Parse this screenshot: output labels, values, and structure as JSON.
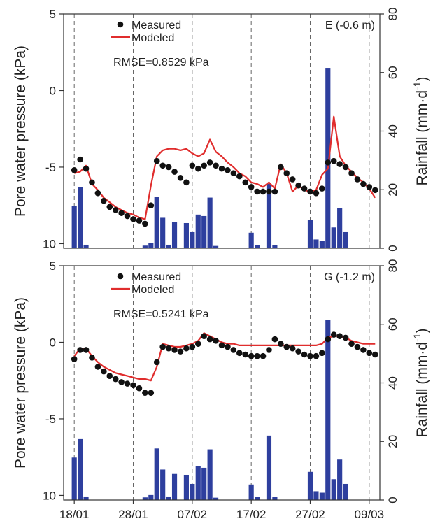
{
  "chart_data": [
    {
      "type": "bar+scatter+line",
      "panel_label": "E (-0.6 m)",
      "annotation": "RMSE=0.8529 kPa",
      "ylabel": "Pore water pressure (kPa)",
      "y2label": "Rainfall (mm·d",
      "y2label_sup": "-1",
      "y2label_end": ")",
      "ylim": [
        -10.3,
        5
      ],
      "y2lim": [
        0,
        80
      ],
      "yticks": [
        5,
        0,
        -5,
        10
      ],
      "ytick_labels": [
        "5",
        "0",
        "-5",
        "10"
      ],
      "y2ticks": [
        0,
        20,
        40,
        60,
        80
      ],
      "y2tick_labels": [
        "0",
        "20",
        "40",
        "60",
        "80"
      ],
      "x_start": "18/01",
      "xlim_days": [
        -1.8,
        51.8
      ],
      "vlines_days": [
        0,
        10,
        20,
        30,
        40,
        50
      ],
      "legend": {
        "measured": "Measured",
        "modeled": "Modeled"
      },
      "measured": [
        [
          0,
          -5.2
        ],
        [
          1,
          -4.5
        ],
        [
          2,
          -5.1
        ],
        [
          3,
          -6.0
        ],
        [
          4,
          -6.7
        ],
        [
          5,
          -7.2
        ],
        [
          6,
          -7.6
        ],
        [
          7,
          -7.8
        ],
        [
          8,
          -8.0
        ],
        [
          9,
          -8.2
        ],
        [
          10,
          -8.4
        ],
        [
          11,
          -8.5
        ],
        [
          12,
          -8.7
        ],
        [
          13,
          -7.5
        ],
        [
          14,
          -4.6
        ],
        [
          15,
          -4.9
        ],
        [
          16,
          -5.0
        ],
        [
          17,
          -5.3
        ],
        [
          18,
          -5.7
        ],
        [
          19,
          -6.0
        ],
        [
          20,
          -4.9
        ],
        [
          21,
          -5.1
        ],
        [
          22,
          -4.9
        ],
        [
          23,
          -4.7
        ],
        [
          24,
          -4.9
        ],
        [
          25,
          -5.1
        ],
        [
          26,
          -5.2
        ],
        [
          27,
          -5.4
        ],
        [
          28,
          -5.6
        ],
        [
          29,
          -6.0
        ],
        [
          30,
          -6.3
        ],
        [
          31,
          -6.6
        ],
        [
          32,
          -6.6
        ],
        [
          33,
          -6.6
        ],
        [
          34,
          -6.6
        ],
        [
          35,
          -5.0
        ],
        [
          36,
          -5.4
        ],
        [
          37,
          -5.8
        ],
        [
          38,
          -6.2
        ],
        [
          39,
          -6.4
        ],
        [
          40,
          -6.6
        ],
        [
          41,
          -6.7
        ],
        [
          42,
          -6.4
        ],
        [
          43,
          -4.7
        ],
        [
          44,
          -4.6
        ],
        [
          45,
          -4.8
        ],
        [
          46,
          -5.0
        ],
        [
          47,
          -5.4
        ],
        [
          48,
          -5.8
        ],
        [
          49,
          -6.1
        ],
        [
          50,
          -6.3
        ],
        [
          51,
          -6.5
        ]
      ],
      "modeled": [
        [
          0,
          -5.4
        ],
        [
          1,
          -5.3
        ],
        [
          2,
          -4.9
        ],
        [
          3,
          -6.1
        ],
        [
          4,
          -6.5
        ],
        [
          5,
          -7.0
        ],
        [
          6,
          -7.3
        ],
        [
          7,
          -7.6
        ],
        [
          8,
          -7.8
        ],
        [
          9,
          -8.0
        ],
        [
          10,
          -8.1
        ],
        [
          11,
          -8.3
        ],
        [
          12,
          -8.4
        ],
        [
          13,
          -6.2
        ],
        [
          14,
          -4.3
        ],
        [
          15,
          -3.9
        ],
        [
          16,
          -3.8
        ],
        [
          17,
          -3.8
        ],
        [
          18,
          -3.9
        ],
        [
          19,
          -3.8
        ],
        [
          20,
          -4.1
        ],
        [
          21,
          -4.3
        ],
        [
          22,
          -4.1
        ],
        [
          23,
          -3.2
        ],
        [
          24,
          -4.0
        ],
        [
          25,
          -4.3
        ],
        [
          26,
          -4.7
        ],
        [
          27,
          -5.0
        ],
        [
          28,
          -5.4
        ],
        [
          29,
          -5.6
        ],
        [
          30,
          -6.0
        ],
        [
          31,
          -6.1
        ],
        [
          32,
          -6.3
        ],
        [
          33,
          -6.0
        ],
        [
          34,
          -6.4
        ],
        [
          35,
          -4.8
        ],
        [
          36,
          -5.4
        ],
        [
          37,
          -6.6
        ],
        [
          38,
          -6.2
        ],
        [
          39,
          -6.5
        ],
        [
          40,
          -6.6
        ],
        [
          41,
          -6.5
        ],
        [
          42,
          -5.5
        ],
        [
          43,
          -5.1
        ],
        [
          44,
          -1.7
        ],
        [
          45,
          -4.3
        ],
        [
          46,
          -4.9
        ],
        [
          47,
          -5.3
        ],
        [
          48,
          -5.7
        ],
        [
          49,
          -6.0
        ],
        [
          50,
          -6.4
        ],
        [
          51,
          -7.0
        ]
      ],
      "rainfall": [
        [
          0,
          14.5
        ],
        [
          1,
          20.8
        ],
        [
          2,
          1.2
        ],
        [
          12,
          0.9
        ],
        [
          13,
          1.7
        ],
        [
          14,
          17.6
        ],
        [
          15,
          10.4
        ],
        [
          16,
          1.2
        ],
        [
          17,
          8.9
        ],
        [
          19,
          8.6
        ],
        [
          20,
          5.5
        ],
        [
          21,
          11.5
        ],
        [
          22,
          11.0
        ],
        [
          23,
          17.3
        ],
        [
          24,
          0.8
        ],
        [
          30,
          5.3
        ],
        [
          31,
          1.0
        ],
        [
          33,
          22.0
        ],
        [
          34,
          1.0
        ],
        [
          40,
          9.6
        ],
        [
          41,
          3.0
        ],
        [
          42,
          2.5
        ],
        [
          43,
          61.6
        ],
        [
          44,
          7.1
        ],
        [
          45,
          13.8
        ],
        [
          46,
          5.5
        ]
      ]
    },
    {
      "type": "bar+scatter+line",
      "panel_label": "G (-1.2 m)",
      "annotation": "RMSE=0.5241 kPa",
      "ylabel": "Pore water pressure (kPa)",
      "y2label": "Rainfall (mm·d",
      "y2label_sup": "-1",
      "y2label_end": ")",
      "ylim": [
        -10.3,
        5
      ],
      "y2lim": [
        0,
        80
      ],
      "yticks": [
        5,
        0,
        -5,
        10
      ],
      "ytick_labels": [
        "5",
        "0",
        "-5",
        "10"
      ],
      "y2ticks": [
        0,
        20,
        40,
        60,
        80
      ],
      "y2tick_labels": [
        "0",
        "20",
        "40",
        "60",
        "80"
      ],
      "x_start": "18/01",
      "xlim_days": [
        -1.8,
        51.8
      ],
      "vlines_days": [
        0,
        10,
        20,
        30,
        40,
        50
      ],
      "xticks_days": [
        0,
        10,
        20,
        30,
        40,
        50
      ],
      "xtick_labels": [
        "18/01",
        "28/01",
        "07/02",
        "17/02",
        "27/02",
        "09/03"
      ],
      "legend": {
        "measured": "Measured",
        "modeled": "Modeled"
      },
      "measured": [
        [
          0,
          -1.1
        ],
        [
          1,
          -0.5
        ],
        [
          2,
          -0.5
        ],
        [
          3,
          -1.0
        ],
        [
          4,
          -1.6
        ],
        [
          5,
          -1.9
        ],
        [
          6,
          -2.2
        ],
        [
          7,
          -2.4
        ],
        [
          8,
          -2.6
        ],
        [
          9,
          -2.7
        ],
        [
          10,
          -2.8
        ],
        [
          11,
          -3.0
        ],
        [
          12,
          -3.3
        ],
        [
          13,
          -3.3
        ],
        [
          14,
          -1.3
        ],
        [
          15,
          -0.3
        ],
        [
          16,
          -0.4
        ],
        [
          17,
          -0.5
        ],
        [
          18,
          -0.6
        ],
        [
          19,
          -0.4
        ],
        [
          20,
          -0.3
        ],
        [
          21,
          -0.1
        ],
        [
          22,
          0.4
        ],
        [
          23,
          0.2
        ],
        [
          24,
          0.1
        ],
        [
          25,
          -0.2
        ],
        [
          26,
          -0.3
        ],
        [
          27,
          -0.5
        ],
        [
          28,
          -0.7
        ],
        [
          29,
          -0.8
        ],
        [
          30,
          -0.9
        ],
        [
          31,
          -0.9
        ],
        [
          32,
          -0.9
        ],
        [
          33,
          -0.5
        ],
        [
          34,
          0.2
        ],
        [
          35,
          -0.1
        ],
        [
          36,
          -0.3
        ],
        [
          37,
          -0.4
        ],
        [
          38,
          -0.6
        ],
        [
          39,
          -0.8
        ],
        [
          40,
          -0.9
        ],
        [
          41,
          -0.9
        ],
        [
          42,
          -0.7
        ],
        [
          43,
          0.2
        ],
        [
          44,
          0.5
        ],
        [
          45,
          0.4
        ],
        [
          46,
          0.3
        ],
        [
          47,
          -0.1
        ],
        [
          48,
          -0.3
        ],
        [
          49,
          -0.5
        ],
        [
          50,
          -0.7
        ],
        [
          51,
          -0.8
        ]
      ],
      "modeled": [
        [
          0,
          -0.9
        ],
        [
          1,
          -0.4
        ],
        [
          2,
          -0.4
        ],
        [
          3,
          -0.9
        ],
        [
          4,
          -1.3
        ],
        [
          5,
          -1.6
        ],
        [
          6,
          -1.8
        ],
        [
          7,
          -2.0
        ],
        [
          8,
          -2.1
        ],
        [
          9,
          -2.2
        ],
        [
          10,
          -2.3
        ],
        [
          11,
          -2.4
        ],
        [
          12,
          -2.4
        ],
        [
          13,
          -2.5
        ],
        [
          14,
          -1.6
        ],
        [
          15,
          -0.1
        ],
        [
          16,
          -0.2
        ],
        [
          17,
          -0.3
        ],
        [
          18,
          -0.3
        ],
        [
          19,
          -0.2
        ],
        [
          20,
          -0.1
        ],
        [
          21,
          0.1
        ],
        [
          22,
          0.6
        ],
        [
          23,
          0.4
        ],
        [
          24,
          0.2
        ],
        [
          25,
          0.0
        ],
        [
          26,
          -0.1
        ],
        [
          27,
          -0.1
        ],
        [
          28,
          -0.2
        ],
        [
          29,
          -0.2
        ],
        [
          30,
          -0.2
        ],
        [
          31,
          -0.2
        ],
        [
          32,
          -0.2
        ],
        [
          33,
          -0.2
        ],
        [
          34,
          -0.2
        ],
        [
          35,
          -0.2
        ],
        [
          36,
          -0.2
        ],
        [
          37,
          -0.2
        ],
        [
          38,
          -0.2
        ],
        [
          39,
          -0.2
        ],
        [
          40,
          -0.2
        ],
        [
          41,
          -0.2
        ],
        [
          42,
          -0.1
        ],
        [
          43,
          0.3
        ],
        [
          44,
          0.4
        ],
        [
          45,
          0.4
        ],
        [
          46,
          0.3
        ],
        [
          47,
          0.1
        ],
        [
          48,
          0.0
        ],
        [
          49,
          -0.1
        ],
        [
          50,
          -0.1
        ],
        [
          51,
          -0.1
        ]
      ],
      "rainfall": [
        [
          0,
          14.5
        ],
        [
          1,
          20.8
        ],
        [
          2,
          1.2
        ],
        [
          12,
          0.9
        ],
        [
          13,
          1.7
        ],
        [
          14,
          17.6
        ],
        [
          15,
          10.4
        ],
        [
          16,
          1.2
        ],
        [
          17,
          8.9
        ],
        [
          19,
          8.6
        ],
        [
          20,
          5.5
        ],
        [
          21,
          11.5
        ],
        [
          22,
          11.0
        ],
        [
          23,
          17.3
        ],
        [
          24,
          0.8
        ],
        [
          30,
          5.3
        ],
        [
          31,
          1.0
        ],
        [
          33,
          22.0
        ],
        [
          34,
          1.0
        ],
        [
          40,
          9.6
        ],
        [
          41,
          3.0
        ],
        [
          42,
          2.5
        ],
        [
          43,
          61.6
        ],
        [
          44,
          7.1
        ],
        [
          45,
          13.8
        ],
        [
          46,
          5.5
        ]
      ]
    }
  ],
  "colors": {
    "bars": "#2e3f9e",
    "model_line": "#e02d2d",
    "points": "#111111",
    "vlines": "#666666"
  }
}
